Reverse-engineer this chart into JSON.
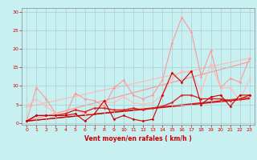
{
  "background_color": "#c8f0f0",
  "grid_color": "#aacccc",
  "xlabel": "Vent moyen/en rafales ( km/h )",
  "x_ticks": [
    0,
    1,
    2,
    3,
    4,
    5,
    6,
    7,
    8,
    9,
    10,
    11,
    12,
    13,
    14,
    15,
    16,
    17,
    18,
    19,
    20,
    21,
    22,
    23
  ],
  "ylim": [
    -0.5,
    31
  ],
  "yticks": [
    0,
    5,
    10,
    15,
    20,
    25,
    30
  ],
  "xlim": [
    -0.5,
    23.5
  ],
  "series": [
    {
      "x": [
        0,
        1,
        2,
        3,
        4,
        5,
        6,
        7,
        8,
        9,
        10,
        11,
        12,
        13,
        14,
        15,
        16,
        17,
        18,
        19,
        20,
        21,
        22,
        23
      ],
      "y": [
        0.5,
        9.5,
        6.5,
        2.5,
        2.0,
        8.0,
        6.5,
        6.0,
        4.5,
        9.5,
        11.5,
        7.5,
        6.5,
        7.5,
        11.5,
        21.5,
        28.5,
        24.5,
        12.5,
        19.5,
        9.5,
        12.0,
        11.0,
        17.5
      ],
      "color": "#ff9999",
      "lw": 0.8,
      "marker": "D",
      "markersize": 1.5,
      "zorder": 2
    },
    {
      "x": [
        0,
        1,
        2,
        3,
        4,
        5,
        6,
        7,
        8,
        9,
        10,
        11,
        12,
        13,
        14,
        15,
        16,
        17,
        18,
        19,
        20,
        21,
        22,
        23
      ],
      "y": [
        4.5,
        6.5,
        4.5,
        2.5,
        2.5,
        3.5,
        2.5,
        2.5,
        5.5,
        5.5,
        7.0,
        5.5,
        5.0,
        5.5,
        7.5,
        12.0,
        14.0,
        13.5,
        8.5,
        16.0,
        9.5,
        9.5,
        6.0,
        12.0
      ],
      "color": "#ffbbbb",
      "lw": 0.8,
      "marker": "D",
      "markersize": 1.5,
      "zorder": 2
    },
    {
      "x": [
        0,
        23
      ],
      "y": [
        4.3,
        17.5
      ],
      "color": "#ffbbbb",
      "lw": 0.9,
      "marker": null,
      "markersize": 0,
      "zorder": 1
    },
    {
      "x": [
        0,
        23
      ],
      "y": [
        0.5,
        16.5
      ],
      "color": "#ff9999",
      "lw": 0.9,
      "marker": null,
      "markersize": 0,
      "zorder": 1
    },
    {
      "x": [
        0,
        1,
        2,
        3,
        4,
        5,
        6,
        7,
        8,
        9,
        10,
        11,
        12,
        13,
        14,
        15,
        16,
        17,
        18,
        19,
        20,
        21,
        22,
        23
      ],
      "y": [
        0.5,
        2.0,
        2.0,
        2.0,
        2.0,
        2.5,
        0.5,
        2.5,
        6.0,
        1.0,
        2.0,
        1.0,
        0.5,
        1.0,
        7.5,
        13.5,
        11.0,
        14.0,
        5.0,
        7.0,
        7.5,
        4.5,
        7.5,
        7.5
      ],
      "color": "#cc0000",
      "lw": 0.8,
      "marker": "D",
      "markersize": 1.5,
      "zorder": 4
    },
    {
      "x": [
        0,
        1,
        2,
        3,
        4,
        5,
        6,
        7,
        8,
        9,
        10,
        11,
        12,
        13,
        14,
        15,
        16,
        17,
        18,
        19,
        20,
        21,
        22,
        23
      ],
      "y": [
        0.5,
        2.0,
        2.0,
        2.0,
        2.5,
        3.5,
        3.0,
        4.0,
        4.0,
        3.5,
        3.5,
        4.0,
        3.5,
        4.0,
        4.5,
        5.5,
        7.5,
        7.5,
        6.5,
        6.5,
        6.5,
        6.0,
        6.5,
        7.5
      ],
      "color": "#dd2222",
      "lw": 1.0,
      "marker": "D",
      "markersize": 1.5,
      "zorder": 3
    },
    {
      "x": [
        0,
        23
      ],
      "y": [
        0.5,
        6.8
      ],
      "color": "#dd2222",
      "lw": 1.0,
      "marker": null,
      "markersize": 0,
      "zorder": 1
    },
    {
      "x": [
        0,
        23
      ],
      "y": [
        0.5,
        6.5
      ],
      "color": "#cc0000",
      "lw": 0.8,
      "marker": null,
      "markersize": 0,
      "zorder": 1
    }
  ],
  "tick_fontsize": 4.5,
  "xlabel_fontsize": 5.5,
  "tick_color": "#cc0000",
  "xlabel_color": "#cc0000"
}
